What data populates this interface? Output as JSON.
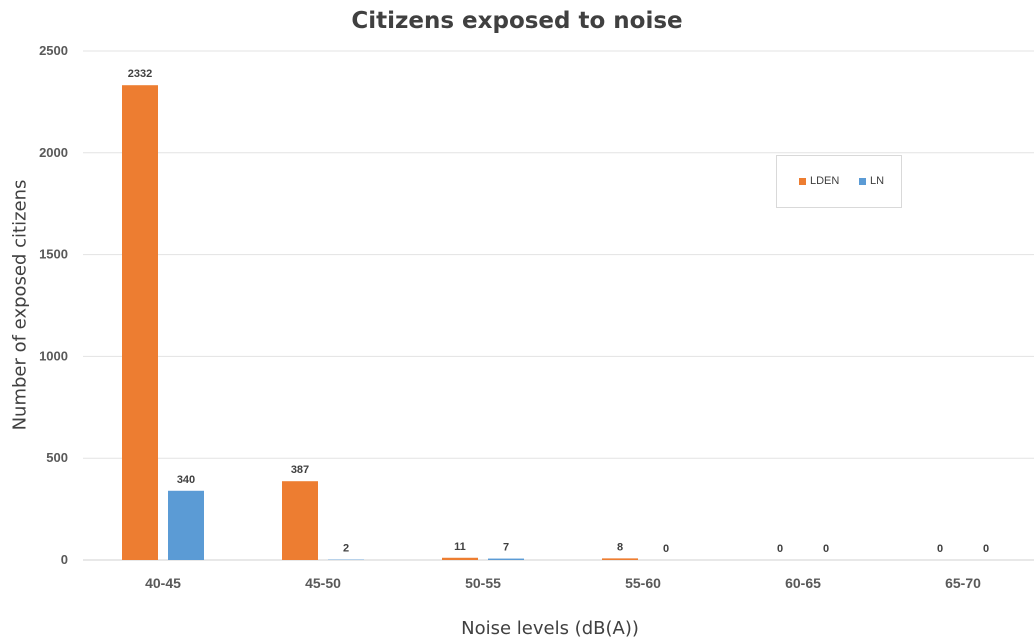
{
  "chart_data": {
    "type": "bar",
    "title": "Citizens exposed to noise",
    "xlabel": "Noise levels (dB(A))",
    "ylabel": "Number of exposed citizens",
    "categories": [
      "40-45",
      "45-50",
      "50-55",
      "55-60",
      "60-65",
      "65-70"
    ],
    "series": [
      {
        "name": "LDEN",
        "color": "#ed7d31",
        "values": [
          2332,
          387,
          11,
          8,
          0,
          0
        ]
      },
      {
        "name": "LN",
        "color": "#5b9bd5",
        "values": [
          340,
          2,
          7,
          0,
          0,
          0
        ]
      }
    ],
    "ylim": [
      0,
      2500
    ],
    "yticks": [
      "0",
      "500",
      "1000",
      "1500",
      "2000",
      "2500"
    ],
    "grid": true,
    "legend_position": "upper-right inside plot"
  }
}
